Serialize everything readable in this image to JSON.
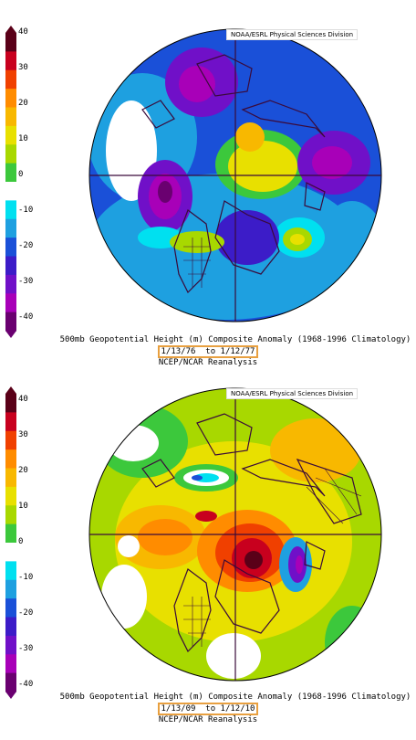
{
  "colorbar": {
    "ticks": [
      "40",
      "30",
      "20",
      "10",
      "0",
      "-10",
      "-20",
      "-30",
      "-40"
    ],
    "colors": [
      "#5a0018",
      "#c8001e",
      "#f04000",
      "#ff8c00",
      "#f8b800",
      "#e8e000",
      "#a8d800",
      "#3cc83c",
      "#ffffff",
      "#00e0f0",
      "#1ea0e0",
      "#1a50d8",
      "#3c1cc8",
      "#7010c8",
      "#a800b8",
      "#6a0070"
    ]
  },
  "panels": [
    {
      "credit": "NOAA/ESRL Physical Sciences Division",
      "title": "500mb Geopotential Height (m) Composite Anomaly (1968-1996 Climatology)",
      "date_start": "1/13/76",
      "date_sep": "to",
      "date_end": "1/12/77",
      "source": "NCEP/NCAR Reanalysis"
    },
    {
      "credit": "NOAA/ESRL Physical Sciences Division",
      "title": "500mb Geopotential Height (m) Composite Anomaly (1968-1996 Climatology)",
      "date_start": "1/13/09",
      "date_sep": "to",
      "date_end": "1/12/10",
      "source": "NCEP/NCAR Reanalysis"
    }
  ]
}
